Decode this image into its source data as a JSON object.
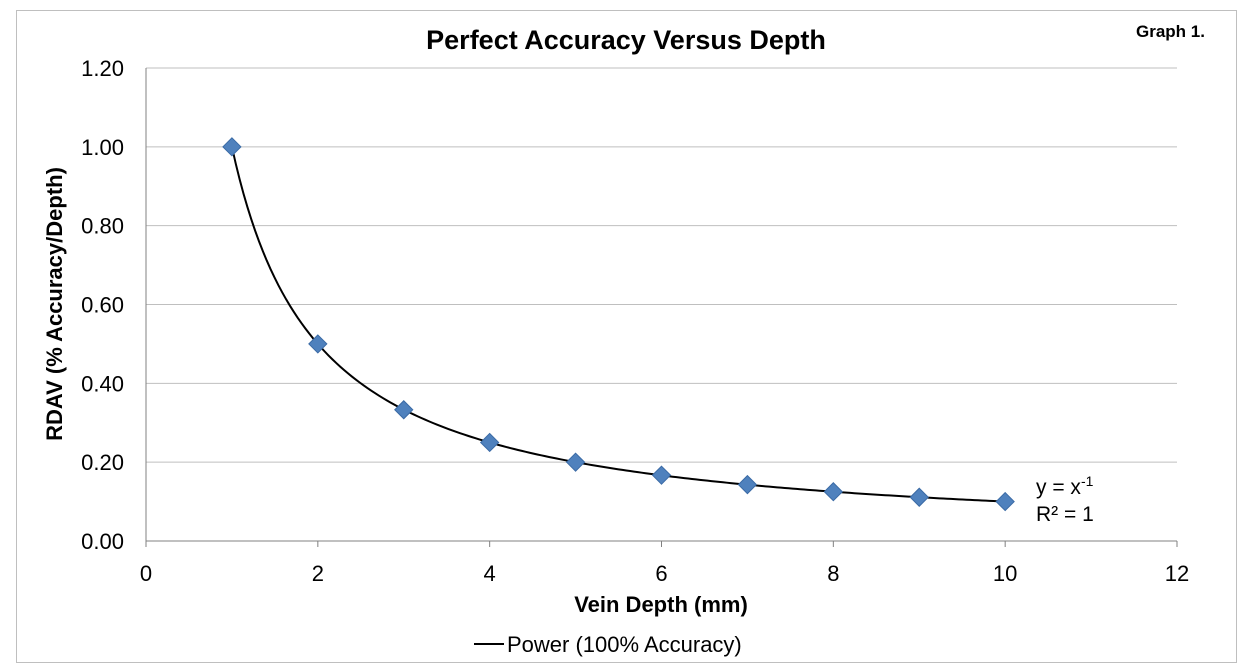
{
  "label": "Graph 1.",
  "chart_data": {
    "type": "scatter",
    "title": "Perfect Accuracy Versus Depth",
    "xlabel": "Vein Depth (mm)",
    "ylabel": "RDAV (% Accuracy/Depth)",
    "xlim": [
      0,
      12
    ],
    "ylim": [
      0,
      1.2
    ],
    "xticks": [
      "0",
      "2",
      "4",
      "6",
      "8",
      "10",
      "12"
    ],
    "yticks": [
      "0.00",
      "0.20",
      "0.40",
      "0.60",
      "0.80",
      "1.00",
      "1.20"
    ],
    "grid": true,
    "legend_position": "bottom",
    "series": [
      {
        "x": [
          1,
          2,
          3,
          4,
          5,
          6,
          7,
          8,
          9,
          10
        ],
        "y": [
          1.0,
          0.5,
          0.333,
          0.25,
          0.2,
          0.167,
          0.143,
          0.125,
          0.111,
          0.1
        ],
        "marker": "diamond",
        "color": "#4f81bd"
      }
    ],
    "trendline": {
      "name": "Power (100% Accuracy)",
      "kind": "power",
      "coefficient": 1,
      "exponent": -1,
      "x_range": [
        1,
        10
      ],
      "color": "#000000",
      "equation_base": "y = x",
      "equation_exponent": "-1",
      "r_squared": "R² = 1"
    }
  }
}
